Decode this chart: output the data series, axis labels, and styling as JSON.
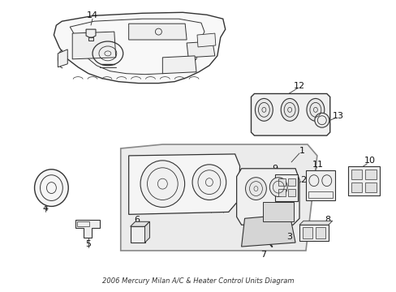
{
  "title": "2006 Mercury Milan A/C & Heater Control Units Diagram",
  "bg_color": "#ffffff",
  "lc": "#333333",
  "figsize": [
    4.89,
    3.6
  ],
  "dpi": 100
}
